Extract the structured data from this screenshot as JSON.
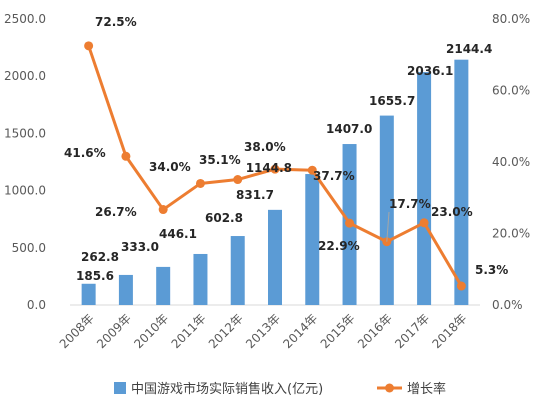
{
  "chart_data": {
    "type": "bar",
    "categories": [
      "2008年",
      "2009年",
      "2010年",
      "2011年",
      "2012年",
      "2013年",
      "2014年",
      "2015年",
      "2016年",
      "2017年",
      "2018年"
    ],
    "series": [
      {
        "name": "中国游戏市场实际销售收入(亿元)",
        "type": "bar",
        "axis": "left",
        "color": "#5B9BD5",
        "values": [
          185.6,
          262.8,
          333.0,
          446.1,
          602.8,
          831.7,
          1144.8,
          1407.0,
          1655.7,
          2036.1,
          2144.4
        ],
        "labels": [
          "185.6",
          "262.8",
          "333.0",
          "446.1",
          "602.8",
          "831.7",
          "1144.8",
          "1407.0",
          "1655.7",
          "2036.1",
          "2144.4"
        ]
      },
      {
        "name": "增长率",
        "type": "line",
        "axis": "right",
        "color": "#ED7D31",
        "values": [
          72.5,
          41.6,
          26.7,
          34.0,
          35.1,
          38.0,
          37.7,
          22.9,
          17.7,
          23.0,
          5.3
        ],
        "labels": [
          "72.5%",
          "41.6%",
          "26.7%",
          "34.0%",
          "35.1%",
          "38.0%",
          "37.7%",
          "22.9%",
          "17.7%",
          "23.0%",
          "5.3%"
        ]
      }
    ],
    "y_left": {
      "min": 0,
      "max": 2500,
      "ticks": [
        "0.0",
        "500.0",
        "1000.0",
        "1500.0",
        "2000.0",
        "2500.0"
      ]
    },
    "y_right": {
      "min": 0,
      "max": 80,
      "ticks": [
        "0.0%",
        "20.0%",
        "40.0%",
        "60.0%",
        "80.0%"
      ]
    },
    "grid": false,
    "legend": "bottom"
  }
}
